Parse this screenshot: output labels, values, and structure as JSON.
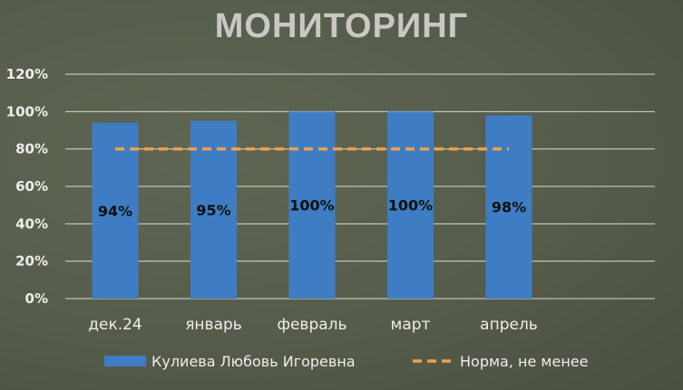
{
  "chart_data": {
    "type": "bar",
    "title": "МОНИТОРИНГ",
    "categories": [
      "дек.24",
      "январь",
      "февраль",
      "март",
      "апрель"
    ],
    "series": [
      {
        "name": "Кулиева Любовь Игоревна",
        "type": "bar",
        "values": [
          94,
          95,
          100,
          100,
          98
        ],
        "labels": [
          "94%",
          "95%",
          "100%",
          "100%",
          "98%"
        ],
        "color": "#3e7dc3"
      },
      {
        "name": "Норма, не менее",
        "type": "line",
        "style": "dashed",
        "values": [
          80,
          80,
          80,
          80,
          80
        ],
        "color": "#f0a04b"
      }
    ],
    "yticks": [
      "0%",
      "20%",
      "40%",
      "60%",
      "80%",
      "100%",
      "120%"
    ],
    "ylim": [
      0,
      120
    ],
    "grid": true,
    "legend": "bottom"
  },
  "colors": {
    "gridline": "#d9d9d4",
    "text": "#eeeeea"
  }
}
